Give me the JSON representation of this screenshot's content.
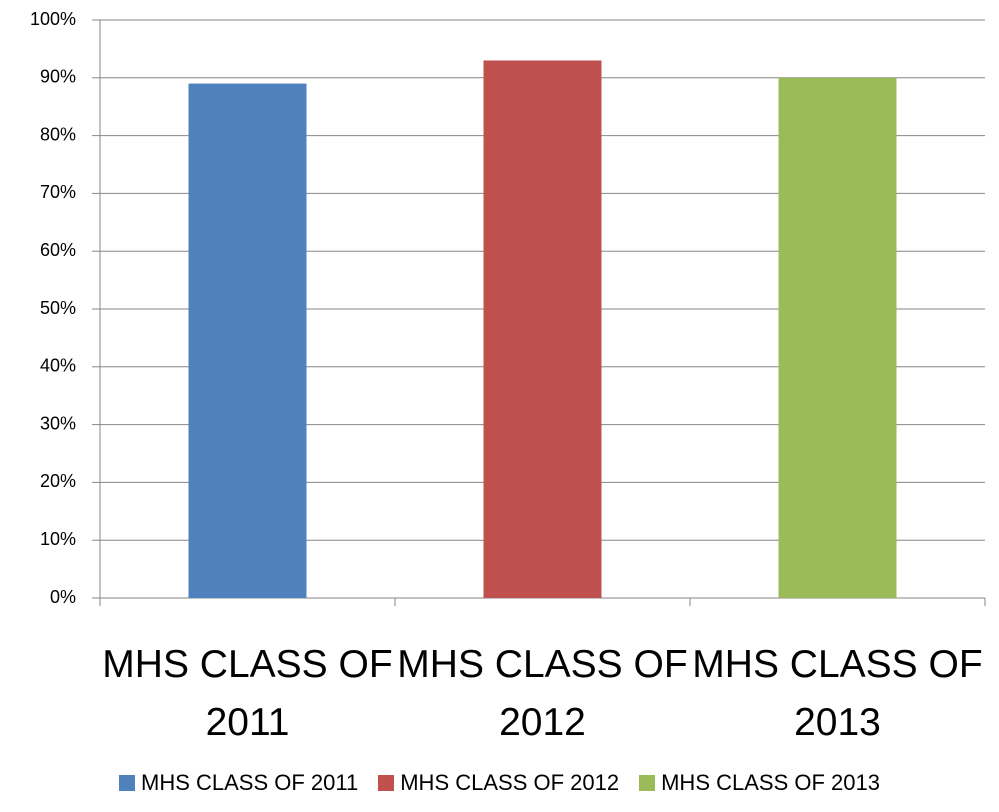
{
  "chart_data": {
    "type": "bar",
    "categories": [
      "MHS CLASS OF 2011",
      "MHS CLASS OF 2012",
      "MHS CLASS OF 2013"
    ],
    "values": [
      89,
      93,
      90
    ],
    "colors": [
      "#4f81bd",
      "#c0504d",
      "#9bbb59"
    ],
    "ylim": [
      0,
      100
    ],
    "yticks": [
      {
        "value": 0,
        "label": "0%"
      },
      {
        "value": 10,
        "label": "10%"
      },
      {
        "value": 20,
        "label": "20%"
      },
      {
        "value": 30,
        "label": "30%"
      },
      {
        "value": 40,
        "label": "40%"
      },
      {
        "value": 50,
        "label": "50%"
      },
      {
        "value": 60,
        "label": "60%"
      },
      {
        "value": 70,
        "label": "70%"
      },
      {
        "value": 80,
        "label": "80%"
      },
      {
        "value": 90,
        "label": "90%"
      },
      {
        "value": 100,
        "label": "100%"
      }
    ],
    "grid": true,
    "legend": "bottom"
  }
}
